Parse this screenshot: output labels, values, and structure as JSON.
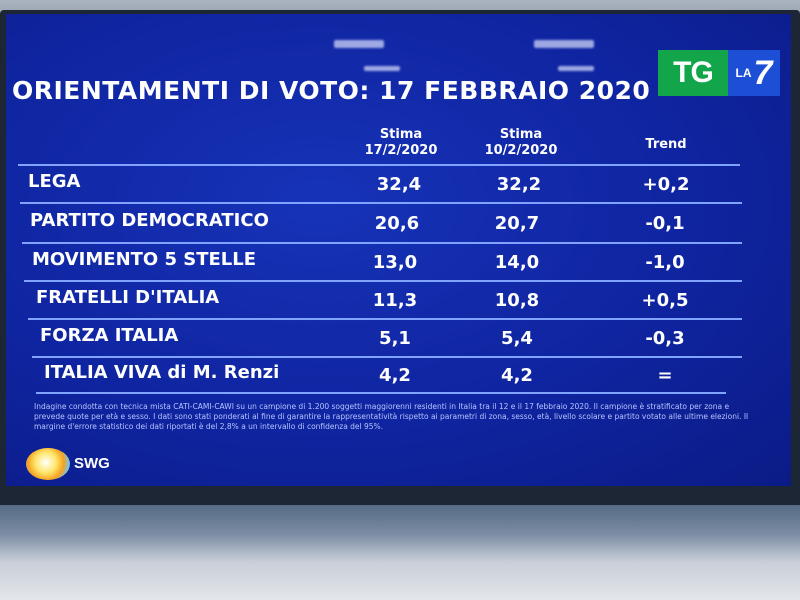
{
  "title": "ORIENTAMENTI DI VOTO: 17 FEBBRAIO 2020",
  "logo": {
    "tg": "TG",
    "la": "LA",
    "seven": "7"
  },
  "columns": {
    "c1_line1": "Stima",
    "c1_line2": "17/2/2020",
    "c2_line1": "Stima",
    "c2_line2": "10/2/2020",
    "c3": "Trend"
  },
  "rows": [
    {
      "party": "LEGA",
      "v1": "32,4",
      "v2": "32,2",
      "trend": "+0,2"
    },
    {
      "party": "PARTITO DEMOCRATICO",
      "v1": "20,6",
      "v2": "20,7",
      "trend": "-0,1"
    },
    {
      "party": "MOVIMENTO 5 STELLE",
      "v1": "13,0",
      "v2": "14,0",
      "trend": "-1,0"
    },
    {
      "party": "FRATELLI D'ITALIA",
      "v1": "11,3",
      "v2": "10,8",
      "trend": "+0,5"
    },
    {
      "party": "FORZA ITALIA",
      "v1": "5,1",
      "v2": "5,4",
      "trend": "-0,3"
    },
    {
      "party": "ITALIA VIVA di M. Renzi",
      "v1": "4,2",
      "v2": "4,2",
      "trend": "="
    }
  ],
  "footnote": "Indagine condotta con tecnica mista CATI-CAMI-CAWI su un campione di 1.200 soggetti maggiorenni residenti in Italia tra il 12 e il 17 febbraio 2020. Il campione è stratificato per zona e prevede quote per età e sesso. I dati sono stati ponderati al fine di garantire la rappresentatività rispetto ai parametri di zona, sesso, età, livello scolare e partito votato alle ultime elezioni. Il margine d'errore statistico dei dati riportati è del 2,8% a un intervallo di confidenza del 95%.",
  "brand": "SWG",
  "colors": {
    "screen": "#0f24a0",
    "accent_line": "#7fa3ff",
    "tg_green": "#13a54a",
    "la7_blue": "#1d4fd6"
  }
}
